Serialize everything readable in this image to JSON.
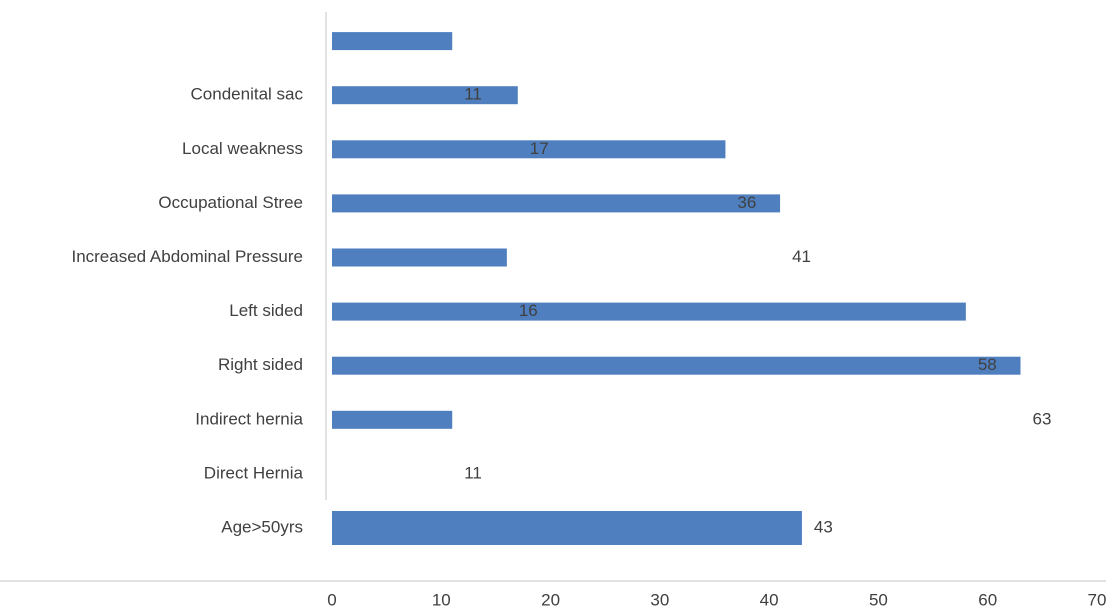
{
  "chart_data": {
    "type": "bar",
    "orientation": "horizontal",
    "categories": [
      "Age>50yrs",
      "Direct Hernia",
      "Indirect hernia",
      "Right sided",
      "Left sided",
      "Increased Abdominal Pressure",
      "Occupational Stree",
      "Local weakness",
      "Condenital sac",
      null
    ],
    "values": [
      43,
      11,
      63,
      58,
      16,
      41,
      36,
      17,
      11,
      null
    ],
    "color": "#4f7fbf",
    "xlim": [
      0,
      70
    ],
    "xticks": [
      0,
      10,
      20,
      30,
      40,
      50,
      60,
      70
    ]
  }
}
